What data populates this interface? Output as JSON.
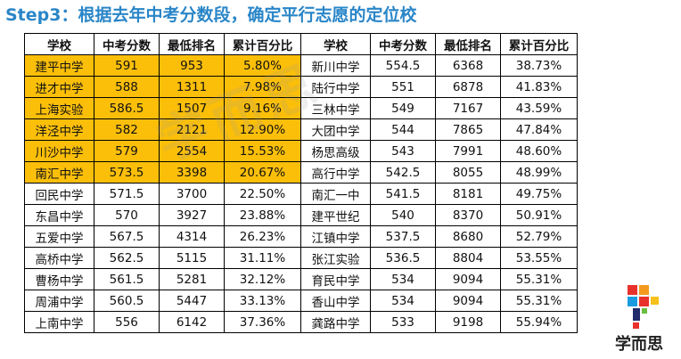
{
  "title": "Step3：根据去年中考分数段，确定平行志愿的定位校",
  "watermark": "学而思",
  "colors": {
    "title": "#2a86c8",
    "highlight": "#fbbf0a"
  },
  "table": {
    "headers": [
      "学校",
      "中考分数",
      "最低排名",
      "累计百分比",
      "学校",
      "中考分数",
      "最低排名",
      "累计百分比"
    ],
    "rows": [
      {
        "highlight": true,
        "left": [
          "建平中学",
          "591",
          "953",
          "5.80%"
        ],
        "right": [
          "新川中学",
          "554.5",
          "6368",
          "38.73%"
        ]
      },
      {
        "highlight": true,
        "left": [
          "进才中学",
          "588",
          "1311",
          "7.98%"
        ],
        "right": [
          "陆行中学",
          "551",
          "6878",
          "41.83%"
        ]
      },
      {
        "highlight": true,
        "left": [
          "上海实验",
          "586.5",
          "1507",
          "9.16%"
        ],
        "right": [
          "三林中学",
          "549",
          "7167",
          "43.59%"
        ]
      },
      {
        "highlight": true,
        "left": [
          "洋泾中学",
          "582",
          "2121",
          "12.90%"
        ],
        "right": [
          "大团中学",
          "544",
          "7865",
          "47.84%"
        ]
      },
      {
        "highlight": true,
        "left": [
          "川沙中学",
          "579",
          "2554",
          "15.53%"
        ],
        "right": [
          "杨思高级",
          "543",
          "7991",
          "48.60%"
        ]
      },
      {
        "highlight": true,
        "left": [
          "南汇中学",
          "573.5",
          "3398",
          "20.67%"
        ],
        "right": [
          "高行中学",
          "542.5",
          "8055",
          "48.99%"
        ]
      },
      {
        "highlight": false,
        "left": [
          "回民中学",
          "571.5",
          "3700",
          "22.50%"
        ],
        "right": [
          "南汇一中",
          "541.5",
          "8181",
          "49.75%"
        ]
      },
      {
        "highlight": false,
        "left": [
          "东昌中学",
          "570",
          "3927",
          "23.88%"
        ],
        "right": [
          "建平世纪",
          "540",
          "8370",
          "50.91%"
        ]
      },
      {
        "highlight": false,
        "left": [
          "五爱中学",
          "567.5",
          "4314",
          "26.23%"
        ],
        "right": [
          "江镇中学",
          "537.5",
          "8680",
          "52.79%"
        ]
      },
      {
        "highlight": false,
        "left": [
          "高桥中学",
          "562.5",
          "5115",
          "31.11%"
        ],
        "right": [
          "张江实验",
          "536.5",
          "8804",
          "53.55%"
        ]
      },
      {
        "highlight": false,
        "left": [
          "曹杨中学",
          "561.5",
          "5281",
          "32.12%"
        ],
        "right": [
          "育民中学",
          "534",
          "9094",
          "55.31%"
        ]
      },
      {
        "highlight": false,
        "left": [
          "周浦中学",
          "560.5",
          "5447",
          "33.13%"
        ],
        "right": [
          "香山中学",
          "534",
          "9094",
          "55.31%"
        ]
      },
      {
        "highlight": false,
        "left": [
          "上南中学",
          "556",
          "6142",
          "37.36%"
        ],
        "right": [
          "龚路中学",
          "533",
          "9198",
          "55.94%"
        ]
      }
    ]
  },
  "logo": {
    "text": "学而思"
  }
}
